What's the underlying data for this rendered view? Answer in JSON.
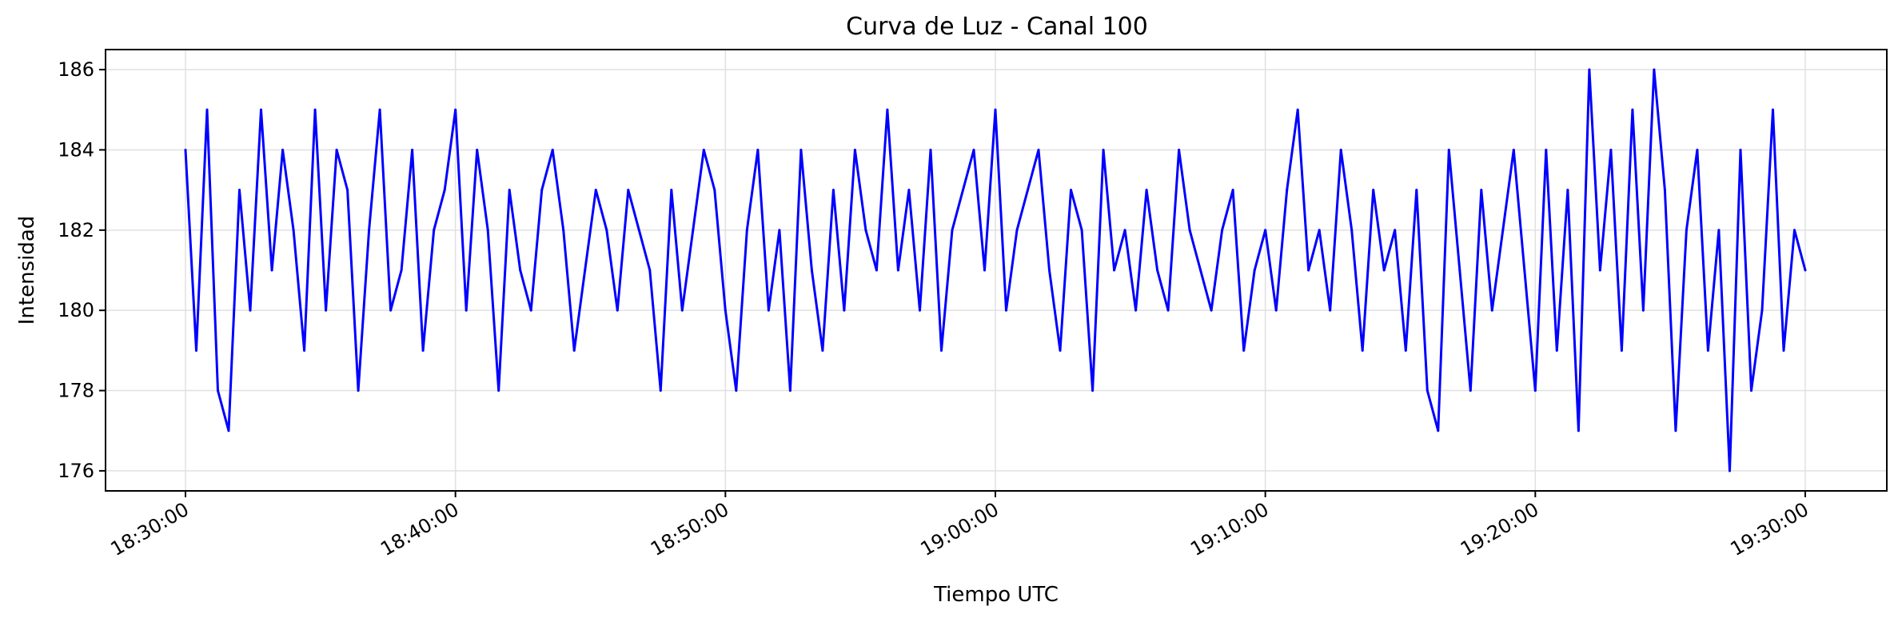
{
  "chart_data": {
    "type": "line",
    "title": "Curva de Luz - Canal 100",
    "xlabel": "Tiempo UTC",
    "ylabel": "Intensidad",
    "x_range": [
      "18:30:00",
      "19:30:00"
    ],
    "ylim": [
      175.5,
      186.5
    ],
    "y_ticks": [
      176,
      178,
      180,
      182,
      184,
      186
    ],
    "x_ticks": [
      "18:30:00",
      "18:40:00",
      "18:50:00",
      "19:00:00",
      "19:10:00",
      "19:20:00",
      "19:30:00"
    ],
    "grid": true,
    "series": [
      {
        "color": "#0000ff",
        "x": [
          "18:30:00",
          "18:30:24",
          "18:30:48",
          "18:31:12",
          "18:31:36",
          "18:32:00",
          "18:32:24",
          "18:32:48",
          "18:33:12",
          "18:33:36",
          "18:34:00",
          "18:34:24",
          "18:34:48",
          "18:35:12",
          "18:35:36",
          "18:36:00",
          "18:36:24",
          "18:36:48",
          "18:37:12",
          "18:37:36",
          "18:38:00",
          "18:38:24",
          "18:38:48",
          "18:39:12",
          "18:39:36",
          "18:40:00",
          "18:40:24",
          "18:40:48",
          "18:41:12",
          "18:41:36",
          "18:42:00",
          "18:42:24",
          "18:42:48",
          "18:43:12",
          "18:43:36",
          "18:44:00",
          "18:44:24",
          "18:44:48",
          "18:45:12",
          "18:45:36",
          "18:46:00",
          "18:46:24",
          "18:46:48",
          "18:47:12",
          "18:47:36",
          "18:48:00",
          "18:48:24",
          "18:48:48",
          "18:49:12",
          "18:49:36",
          "18:50:00",
          "18:50:24",
          "18:50:48",
          "18:51:12",
          "18:51:36",
          "18:52:00",
          "18:52:24",
          "18:52:48",
          "18:53:12",
          "18:53:36",
          "18:54:00",
          "18:54:24",
          "18:54:48",
          "18:55:12",
          "18:55:36",
          "18:56:00",
          "18:56:24",
          "18:56:48",
          "18:57:12",
          "18:57:36",
          "18:58:00",
          "18:58:24",
          "18:58:48",
          "18:59:12",
          "18:59:36",
          "19:00:00",
          "19:00:24",
          "19:00:48",
          "19:01:12",
          "19:01:36",
          "19:02:00",
          "19:02:24",
          "19:02:48",
          "19:03:12",
          "19:03:36",
          "19:04:00",
          "19:04:24",
          "19:04:48",
          "19:05:12",
          "19:05:36",
          "19:06:00",
          "19:06:24",
          "19:06:48",
          "19:07:12",
          "19:07:36",
          "19:08:00",
          "19:08:24",
          "19:08:48",
          "19:09:12",
          "19:09:36",
          "19:10:00",
          "19:10:24",
          "19:10:48",
          "19:11:12",
          "19:11:36",
          "19:12:00",
          "19:12:24",
          "19:12:48",
          "19:13:12",
          "19:13:36",
          "19:14:00",
          "19:14:24",
          "19:14:48",
          "19:15:12",
          "19:15:36",
          "19:16:00",
          "19:16:24",
          "19:16:48",
          "19:17:12",
          "19:17:36",
          "19:18:00",
          "19:18:24",
          "19:18:48",
          "19:19:12",
          "19:19:36",
          "19:20:00",
          "19:20:24",
          "19:20:48",
          "19:21:12",
          "19:21:36",
          "19:22:00",
          "19:22:24",
          "19:22:48",
          "19:23:12",
          "19:23:36",
          "19:24:00",
          "19:24:24",
          "19:24:48",
          "19:25:12",
          "19:25:36",
          "19:26:00",
          "19:26:24",
          "19:26:48",
          "19:27:12",
          "19:27:36",
          "19:28:00",
          "19:28:24",
          "19:28:48",
          "19:29:12",
          "19:29:36",
          "19:30:00"
        ],
        "values": [
          184,
          179,
          185,
          178,
          177,
          183,
          180,
          185,
          181,
          184,
          182,
          179,
          185,
          180,
          184,
          183,
          178,
          182,
          185,
          180,
          181,
          184,
          179,
          182,
          183,
          185,
          180,
          184,
          182,
          178,
          183,
          181,
          180,
          183,
          184,
          182,
          179,
          181,
          183,
          182,
          180,
          183,
          182,
          181,
          178,
          183,
          180,
          182,
          184,
          183,
          180,
          178,
          182,
          184,
          180,
          182,
          178,
          184,
          181,
          179,
          183,
          180,
          184,
          182,
          181,
          185,
          181,
          183,
          180,
          184,
          179,
          182,
          183,
          184,
          181,
          185,
          180,
          182,
          183,
          184,
          181,
          179,
          183,
          182,
          178,
          184,
          181,
          182,
          180,
          183,
          181,
          180,
          184,
          182,
          181,
          180,
          182,
          183,
          179,
          181,
          182,
          180,
          183,
          185,
          181,
          182,
          180,
          184,
          182,
          179,
          183,
          181,
          182,
          179,
          183,
          178,
          177,
          184,
          181,
          178,
          183,
          180,
          182,
          184,
          181,
          178,
          184,
          179,
          183,
          177,
          186,
          181,
          184,
          179,
          185,
          180,
          186,
          183,
          177,
          182,
          184,
          179,
          182,
          176,
          184,
          178,
          180,
          185,
          179,
          182,
          181
        ]
      }
    ]
  }
}
